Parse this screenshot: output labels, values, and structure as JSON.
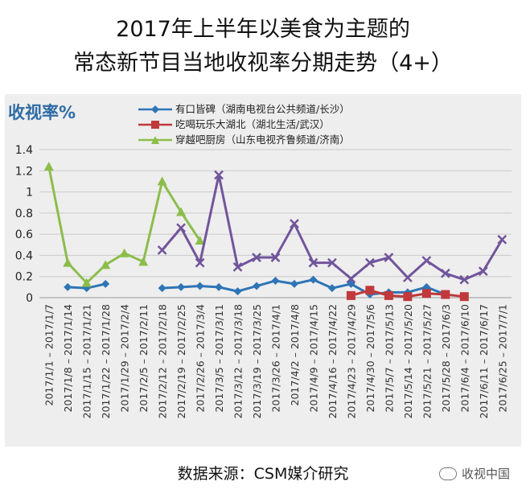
{
  "title_line1": "2017年上半年以美食为主题的",
  "title_line2": "常态新节目当地收视率分期走势（4+）",
  "y_unit_label": "收视率%",
  "source": "数据来源：CSM媒介研究",
  "watermark": "收视中国",
  "colors": {
    "background": "#eeeeee",
    "blue": "#2e75b6",
    "red": "#c0393b",
    "green": "#8cbd4b",
    "purple": "#71559b",
    "grid": "#c9c9c9"
  },
  "chart_data": {
    "type": "line",
    "categories": [
      "2017/1/1 – 2017/1/7",
      "2017/1/8 – 2017/1/14",
      "2017/1/15 – 2017/1/21",
      "2017/1/22 – 2017/1/28",
      "2017/1/29 – 2017/2/4",
      "2017/2/5 – 2017/2/11",
      "2017/2/12 – 2017/2/18",
      "2017/2/19 – 2017/2/25",
      "2017/2/26 – 2017/3/4",
      "2017/3/5 – 2017/3/11",
      "2017/3/12 – 2017/3/18",
      "2017/3/19 – 2017/3/25",
      "2017/3/26 – 2017/4/1",
      "2017/4/2 – 2017/4/8",
      "2017/4/9 – 2017/4/15",
      "2017/4/16 – 2017/4/22",
      "2017/4/23 – 2017/4/29",
      "2017/4/30 – 2017/5/6",
      "2017/5/7 – 2017/5/13",
      "2017/5/14 – 2017/5/20",
      "2017/5/21 – 2017/5/27",
      "2017/5/28 – 2017/6/3",
      "2017/6/4 – 2017/6/10",
      "2017/6/11 – 2017/6/17",
      "2017/6/25 – 2017/7/1"
    ],
    "ylim": [
      0,
      1.4
    ],
    "yticks": [
      "0",
      "0.2",
      "0.4",
      "0.6",
      "0.8",
      "1",
      "1.2",
      "1.4"
    ],
    "grid": true,
    "legend_position": "top",
    "series": [
      {
        "name": "有口皆碑（湖南电视台公共频道/长沙）",
        "color_key": "blue",
        "marker": "diamond",
        "values": [
          null,
          0.1,
          0.09,
          0.13,
          null,
          null,
          0.09,
          0.1,
          0.11,
          0.1,
          0.06,
          0.11,
          0.16,
          0.13,
          0.17,
          0.09,
          0.13,
          0.03,
          0.05,
          0.05,
          0.1,
          0.03,
          null,
          null,
          null
        ]
      },
      {
        "name": "吃喝玩乐大湖北（湖北生活/武汉）",
        "color_key": "red",
        "marker": "square",
        "values": [
          null,
          null,
          null,
          null,
          null,
          null,
          null,
          null,
          null,
          null,
          null,
          null,
          null,
          null,
          null,
          null,
          0.02,
          0.07,
          0.02,
          0.01,
          0.04,
          0.03,
          0.01,
          null,
          null
        ]
      },
      {
        "name": "穿越吧厨房（山东电视齐鲁频道/济南）",
        "color_key": "green",
        "marker": "triangle",
        "values": [
          1.24,
          0.33,
          0.14,
          0.31,
          0.42,
          0.34,
          1.1,
          0.81,
          0.54,
          null,
          null,
          null,
          null,
          null,
          null,
          null,
          null,
          null,
          null,
          null,
          null,
          null,
          null,
          null,
          null
        ]
      },
      {
        "name": "",
        "color_key": "purple",
        "marker": "x",
        "values": [
          null,
          null,
          null,
          null,
          null,
          null,
          0.45,
          0.66,
          0.33,
          1.16,
          0.29,
          0.38,
          0.38,
          0.7,
          0.33,
          0.33,
          0.18,
          0.33,
          0.38,
          0.19,
          0.35,
          0.23,
          0.17,
          0.25,
          0.55
        ]
      }
    ]
  }
}
